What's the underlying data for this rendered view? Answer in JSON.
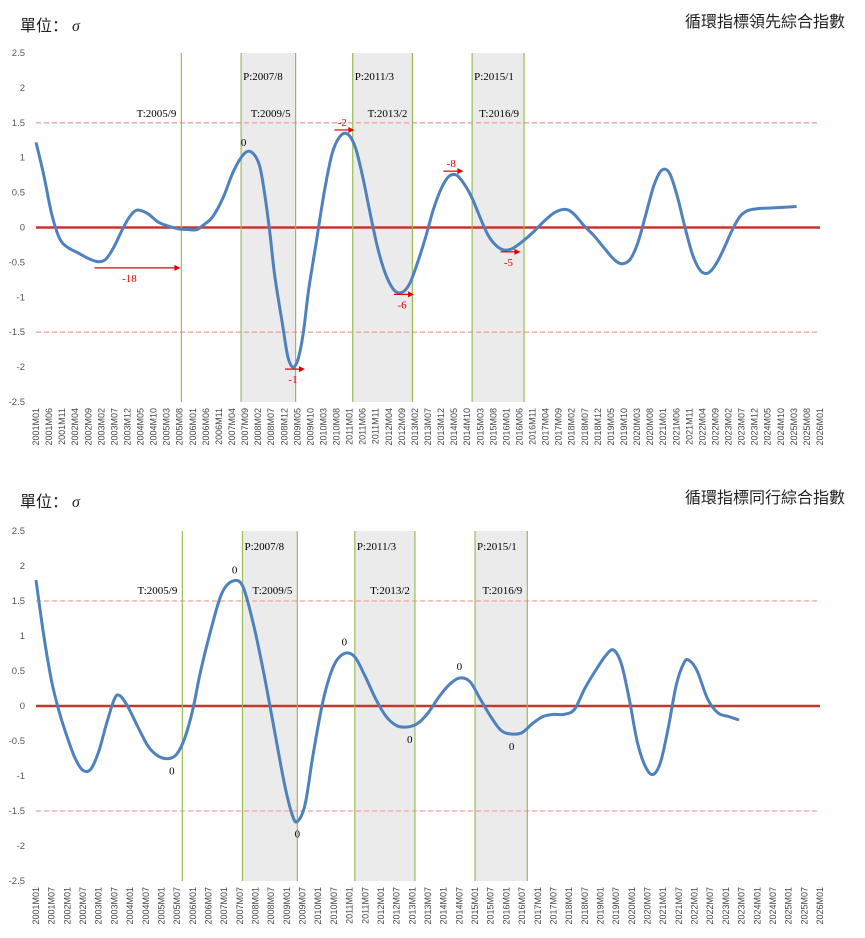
{
  "chart_data": [
    {
      "type": "line",
      "title": "循環指標領先綜合指數",
      "unit_label": "單位：",
      "unit_symbol": "σ",
      "x_tick_labels": [
        "2001M01",
        "2001M06",
        "2001M11",
        "2002M04",
        "2002M09",
        "2003M02",
        "2003M07",
        "2003M12",
        "2004M05",
        "2004M10",
        "2005M03",
        "2005M08",
        "2006M01",
        "2006M06",
        "2006M11",
        "2007M04",
        "2007M09",
        "2008M02",
        "2008M07",
        "2008M12",
        "2009M05",
        "2009M10",
        "2010M03",
        "2010M08",
        "2011M01",
        "2011M06",
        "2011M11",
        "2012M04",
        "2012M09",
        "2013M02",
        "2013M07",
        "2013M12",
        "2014M05",
        "2014M10",
        "2015M03",
        "2015M08",
        "2016M01",
        "2016M06",
        "2016M11",
        "2017M04",
        "2017M09",
        "2018M02",
        "2018M07",
        "2018M12",
        "2019M05",
        "2019M10",
        "2020M03",
        "2020M08",
        "2021M01",
        "2021M06",
        "2021M11",
        "2022M04",
        "2022M09",
        "2023M02",
        "2023M07",
        "2023M12",
        "2024M05",
        "2024M10",
        "2025M03",
        "2025M08",
        "2026M01"
      ],
      "ylim": [
        -2.5,
        2.5
      ],
      "y_ticks": [
        "2.5",
        "2",
        "1.5",
        "1",
        "0.5",
        "0",
        "-0.5",
        "-1",
        "-1.5",
        "-2",
        "-2.5"
      ],
      "x_range": [
        "2001-01",
        "2026-03"
      ],
      "grid": false,
      "reference_lines": [
        {
          "y": 0,
          "style": "solid",
          "color": "#c0392b"
        },
        {
          "y": 1.5,
          "style": "dashed",
          "color": "#f2a0a0"
        },
        {
          "y": -1.5,
          "style": "dashed",
          "color": "#f2a0a0"
        }
      ],
      "vertical_markers": [
        {
          "date": "2005-09",
          "label": "T:2005/9"
        },
        {
          "date": "2007-08",
          "label": "P:2007/8"
        },
        {
          "date": "2009-05",
          "label": "T:2009/5"
        },
        {
          "date": "2011-03",
          "label": "P:2011/3"
        },
        {
          "date": "2013-02",
          "label": "T:2013/2"
        },
        {
          "date": "2015-01",
          "label": "P:2015/1"
        },
        {
          "date": "2016-09",
          "label": "T:2016/9"
        }
      ],
      "shaded_ranges": [
        [
          "2007-08",
          "2009-05"
        ],
        [
          "2011-03",
          "2013-02"
        ],
        [
          "2015-01",
          "2016-09"
        ]
      ],
      "series": [
        {
          "color": "#4f81bd",
          "points": [
            [
              "2001-01",
              1.22
            ],
            [
              "2001-04",
              0.75
            ],
            [
              "2001-07",
              0.2
            ],
            [
              "2001-10",
              -0.15
            ],
            [
              "2002-01",
              -0.28
            ],
            [
              "2002-05",
              -0.36
            ],
            [
              "2002-09",
              -0.44
            ],
            [
              "2003-01",
              -0.49
            ],
            [
              "2003-04",
              -0.45
            ],
            [
              "2003-07",
              -0.28
            ],
            [
              "2003-10",
              -0.05
            ],
            [
              "2004-01",
              0.15
            ],
            [
              "2004-04",
              0.25
            ],
            [
              "2004-08",
              0.2
            ],
            [
              "2004-12",
              0.08
            ],
            [
              "2005-04",
              0.02
            ],
            [
              "2005-08",
              -0.02
            ],
            [
              "2005-12",
              -0.03
            ],
            [
              "2006-03",
              -0.03
            ],
            [
              "2006-06",
              0.05
            ],
            [
              "2006-09",
              0.15
            ],
            [
              "2007-01",
              0.42
            ],
            [
              "2007-05",
              0.8
            ],
            [
              "2007-09",
              1.05
            ],
            [
              "2007-12",
              1.08
            ],
            [
              "2008-03",
              0.9
            ],
            [
              "2008-05",
              0.5
            ],
            [
              "2008-07",
              -0.05
            ],
            [
              "2008-09",
              -0.7
            ],
            [
              "2008-12",
              -1.4
            ],
            [
              "2009-02",
              -1.85
            ],
            [
              "2009-04",
              -2.0
            ],
            [
              "2009-06",
              -1.88
            ],
            [
              "2009-08",
              -1.5
            ],
            [
              "2009-10",
              -0.9
            ],
            [
              "2010-01",
              -0.2
            ],
            [
              "2010-04",
              0.5
            ],
            [
              "2010-07",
              1.05
            ],
            [
              "2010-10",
              1.3
            ],
            [
              "2011-01",
              1.34
            ],
            [
              "2011-04",
              1.15
            ],
            [
              "2011-07",
              0.7
            ],
            [
              "2011-10",
              0.15
            ],
            [
              "2012-01",
              -0.35
            ],
            [
              "2012-04",
              -0.7
            ],
            [
              "2012-07",
              -0.9
            ],
            [
              "2012-10",
              -0.93
            ],
            [
              "2013-01",
              -0.8
            ],
            [
              "2013-04",
              -0.5
            ],
            [
              "2013-07",
              -0.15
            ],
            [
              "2013-10",
              0.25
            ],
            [
              "2014-01",
              0.55
            ],
            [
              "2014-04",
              0.73
            ],
            [
              "2014-07",
              0.75
            ],
            [
              "2014-10",
              0.62
            ],
            [
              "2015-01",
              0.42
            ],
            [
              "2015-04",
              0.15
            ],
            [
              "2015-07",
              -0.1
            ],
            [
              "2015-10",
              -0.25
            ],
            [
              "2016-01",
              -0.32
            ],
            [
              "2016-04",
              -0.31
            ],
            [
              "2016-07",
              -0.24
            ],
            [
              "2016-10",
              -0.15
            ],
            [
              "2017-01",
              -0.05
            ],
            [
              "2017-05",
              0.1
            ],
            [
              "2017-09",
              0.22
            ],
            [
              "2018-01",
              0.26
            ],
            [
              "2018-04",
              0.2
            ],
            [
              "2018-08",
              0.03
            ],
            [
              "2018-12",
              -0.12
            ],
            [
              "2019-04",
              -0.3
            ],
            [
              "2019-08",
              -0.47
            ],
            [
              "2019-11",
              -0.52
            ],
            [
              "2020-02",
              -0.45
            ],
            [
              "2020-05",
              -0.2
            ],
            [
              "2020-08",
              0.2
            ],
            [
              "2020-11",
              0.6
            ],
            [
              "2021-02",
              0.82
            ],
            [
              "2021-05",
              0.78
            ],
            [
              "2021-08",
              0.45
            ],
            [
              "2021-11",
              0.0
            ],
            [
              "2022-02",
              -0.4
            ],
            [
              "2022-05",
              -0.62
            ],
            [
              "2022-08",
              -0.65
            ],
            [
              "2022-11",
              -0.52
            ],
            [
              "2023-02",
              -0.3
            ],
            [
              "2023-05",
              -0.05
            ],
            [
              "2023-08",
              0.15
            ],
            [
              "2023-11",
              0.24
            ],
            [
              "2024-03",
              0.27
            ],
            [
              "2024-08",
              0.28
            ],
            [
              "2025-01",
              0.29
            ],
            [
              "2025-06",
              0.3
            ]
          ]
        }
      ],
      "annotations": [
        {
          "date": "2007-09",
          "y": 1.05,
          "text": "0",
          "color": "black"
        },
        {
          "date": "2009-04",
          "y": -2.0,
          "text": "-1",
          "color": "red"
        },
        {
          "date": "2010-11",
          "y": 1.34,
          "text": "-2",
          "color": "red"
        },
        {
          "date": "2012-10",
          "y": -0.93,
          "text": "-6",
          "color": "red"
        },
        {
          "date": "2014-05",
          "y": 0.75,
          "text": "-8",
          "color": "red"
        },
        {
          "date": "2016-03",
          "y": -0.32,
          "text": "-5",
          "color": "red"
        },
        {
          "date": "2004-01",
          "y": -0.55,
          "text": "-18",
          "color": "red"
        }
      ]
    },
    {
      "type": "line",
      "title": "循環指標同行綜合指數",
      "unit_label": "單位：",
      "unit_symbol": "σ",
      "x_tick_labels": [
        "2001M01",
        "2001M07",
        "2002M01",
        "2002M07",
        "2003M01",
        "2003M07",
        "2004M01",
        "2004M07",
        "2005M01",
        "2005M07",
        "2006M01",
        "2006M07",
        "2007M01",
        "2007M07",
        "2008M01",
        "2008M07",
        "2009M01",
        "2009M07",
        "2010M01",
        "2010M07",
        "2011M01",
        "2011M07",
        "2012M01",
        "2012M07",
        "2013M01",
        "2013M07",
        "2014M01",
        "2014M07",
        "2015M01",
        "2015M07",
        "2016M01",
        "2016M07",
        "2017M01",
        "2017M07",
        "2018M01",
        "2018M07",
        "2019M01",
        "2019M07",
        "2020M01",
        "2020M07",
        "2021M01",
        "2021M07",
        "2022M01",
        "2022M07",
        "2023M01",
        "2023M07",
        "2024M01",
        "2024M07",
        "2025M01",
        "2025M07",
        "2026M01"
      ],
      "ylim": [
        -2.5,
        2.5
      ],
      "y_ticks": [
        "2.5",
        "2",
        "1.5",
        "1",
        "0.5",
        "0",
        "-0.5",
        "-1",
        "-1.5",
        "-2",
        "-2.5"
      ],
      "x_range": [
        "2001-01",
        "2026-01"
      ],
      "grid": false,
      "reference_lines": [
        {
          "y": 0,
          "style": "solid",
          "color": "#c0392b"
        },
        {
          "y": 1.5,
          "style": "dashed",
          "color": "#f2a0a0"
        },
        {
          "y": -1.5,
          "style": "dashed",
          "color": "#f2a0a0"
        }
      ],
      "vertical_markers": [
        {
          "date": "2005-09",
          "label": "T:2005/9"
        },
        {
          "date": "2007-08",
          "label": "P:2007/8"
        },
        {
          "date": "2009-05",
          "label": "T:2009/5"
        },
        {
          "date": "2011-03",
          "label": "P:2011/3"
        },
        {
          "date": "2013-02",
          "label": "T:2013/2"
        },
        {
          "date": "2015-01",
          "label": "P:2015/1"
        },
        {
          "date": "2016-09",
          "label": "T:2016/9"
        }
      ],
      "shaded_ranges": [
        [
          "2007-08",
          "2009-05"
        ],
        [
          "2011-03",
          "2013-02"
        ],
        [
          "2015-01",
          "2016-09"
        ]
      ],
      "series": [
        {
          "color": "#4f81bd",
          "points": [
            [
              "2001-01",
              1.8
            ],
            [
              "2001-04",
              1.0
            ],
            [
              "2001-07",
              0.35
            ],
            [
              "2001-10",
              -0.1
            ],
            [
              "2002-01",
              -0.45
            ],
            [
              "2002-04",
              -0.75
            ],
            [
              "2002-07",
              -0.92
            ],
            [
              "2002-10",
              -0.9
            ],
            [
              "2003-01",
              -0.65
            ],
            [
              "2003-04",
              -0.25
            ],
            [
              "2003-07",
              0.1
            ],
            [
              "2003-09",
              0.15
            ],
            [
              "2003-12",
              0.0
            ],
            [
              "2004-04",
              -0.3
            ],
            [
              "2004-08",
              -0.58
            ],
            [
              "2004-12",
              -0.72
            ],
            [
              "2005-04",
              -0.75
            ],
            [
              "2005-07",
              -0.68
            ],
            [
              "2005-10",
              -0.45
            ],
            [
              "2006-01",
              -0.05
            ],
            [
              "2006-04",
              0.5
            ],
            [
              "2006-08",
              1.1
            ],
            [
              "2006-12",
              1.6
            ],
            [
              "2007-04",
              1.78
            ],
            [
              "2007-08",
              1.72
            ],
            [
              "2007-12",
              1.2
            ],
            [
              "2008-04",
              0.5
            ],
            [
              "2008-08",
              -0.3
            ],
            [
              "2008-12",
              -1.1
            ],
            [
              "2009-03",
              -1.55
            ],
            [
              "2009-05",
              -1.65
            ],
            [
              "2009-08",
              -1.4
            ],
            [
              "2009-11",
              -0.7
            ],
            [
              "2010-03",
              0.1
            ],
            [
              "2010-07",
              0.58
            ],
            [
              "2010-11",
              0.75
            ],
            [
              "2011-03",
              0.7
            ],
            [
              "2011-07",
              0.42
            ],
            [
              "2011-11",
              0.1
            ],
            [
              "2012-03",
              -0.15
            ],
            [
              "2012-07",
              -0.28
            ],
            [
              "2012-11",
              -0.3
            ],
            [
              "2013-03",
              -0.25
            ],
            [
              "2013-07",
              -0.1
            ],
            [
              "2013-11",
              0.12
            ],
            [
              "2014-03",
              0.3
            ],
            [
              "2014-07",
              0.4
            ],
            [
              "2014-11",
              0.35
            ],
            [
              "2015-03",
              0.1
            ],
            [
              "2015-07",
              -0.15
            ],
            [
              "2015-11",
              -0.35
            ],
            [
              "2016-03",
              -0.4
            ],
            [
              "2016-07",
              -0.38
            ],
            [
              "2016-11",
              -0.25
            ],
            [
              "2017-03",
              -0.15
            ],
            [
              "2017-07",
              -0.12
            ],
            [
              "2017-11",
              -0.12
            ],
            [
              "2018-03",
              -0.05
            ],
            [
              "2018-07",
              0.25
            ],
            [
              "2018-11",
              0.5
            ],
            [
              "2019-03",
              0.72
            ],
            [
              "2019-06",
              0.8
            ],
            [
              "2019-09",
              0.6
            ],
            [
              "2019-12",
              0.1
            ],
            [
              "2020-03",
              -0.5
            ],
            [
              "2020-06",
              -0.85
            ],
            [
              "2020-09",
              -0.98
            ],
            [
              "2020-12",
              -0.8
            ],
            [
              "2021-03",
              -0.3
            ],
            [
              "2021-06",
              0.3
            ],
            [
              "2021-09",
              0.62
            ],
            [
              "2021-11",
              0.65
            ],
            [
              "2022-02",
              0.5
            ],
            [
              "2022-06",
              0.1
            ],
            [
              "2022-10",
              -0.1
            ],
            [
              "2023-02",
              -0.15
            ],
            [
              "2023-06",
              -0.2
            ]
          ]
        }
      ],
      "annotations": [
        {
          "date": "2005-05",
          "y": -0.75,
          "text": "0",
          "color": "black"
        },
        {
          "date": "2007-05",
          "y": 1.78,
          "text": "0",
          "color": "black"
        },
        {
          "date": "2009-05",
          "y": -1.65,
          "text": "0",
          "color": "black"
        },
        {
          "date": "2010-11",
          "y": 0.75,
          "text": "0",
          "color": "black"
        },
        {
          "date": "2012-12",
          "y": -0.3,
          "text": "0",
          "color": "black"
        },
        {
          "date": "2014-07",
          "y": 0.4,
          "text": "0",
          "color": "black"
        },
        {
          "date": "2016-03",
          "y": -0.4,
          "text": "0",
          "color": "black"
        }
      ]
    }
  ]
}
